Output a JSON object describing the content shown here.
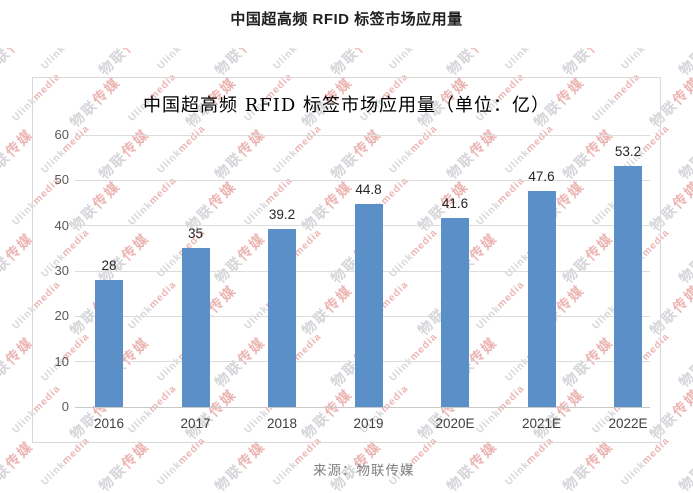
{
  "page": {
    "title": "中国超高频 RFID 标签市场应用量",
    "source": "来源：物联传媒"
  },
  "chart_data": {
    "type": "bar",
    "title": "中国超高频 RFID 标签市场应用量（单位：亿）",
    "categories": [
      "2016",
      "2017",
      "2018",
      "2019",
      "2020E",
      "2021E",
      "2022E"
    ],
    "values": [
      28,
      35,
      39.2,
      44.8,
      41.6,
      47.6,
      53.2
    ],
    "value_labels": [
      "28",
      "35",
      "39.2",
      "44.8",
      "41.6",
      "47.6",
      "53.2"
    ],
    "xlabel": "",
    "ylabel": "",
    "unit": "亿",
    "ylim": [
      0,
      60
    ],
    "ytick_step": 10,
    "yticks": [
      0,
      10,
      20,
      30,
      40,
      50,
      60
    ],
    "grid": true,
    "legend": false,
    "bar_color": "#5b8fc8",
    "gridline_color": "#dcdcdc"
  },
  "watermark": {
    "cn_words": [
      "物联",
      "传媒"
    ],
    "en_words": [
      "Ulink",
      "media"
    ],
    "gray_color": "#aaaeb4",
    "red_color": "#d96e68"
  }
}
